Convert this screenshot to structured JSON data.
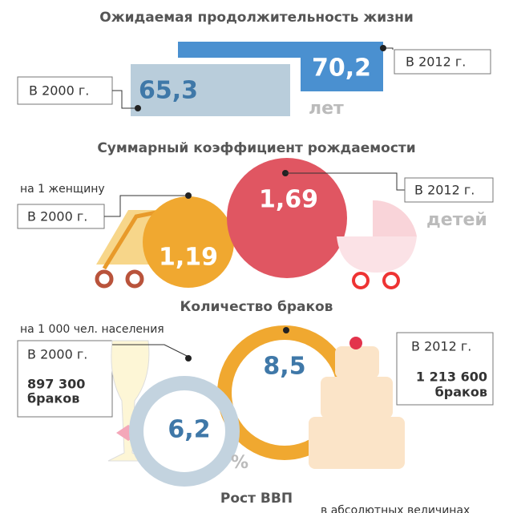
{
  "life_expectancy": {
    "title": "Ожидаемая продолжительность жизни",
    "year_2012": "В 2012 г.",
    "value_2012": "70,2",
    "year_2000": "В 2000 г.",
    "value_2000": "65,3",
    "unit": "лет"
  },
  "fertility": {
    "title": "Суммарный коэффициент рождаемости",
    "note": "на 1 женщину",
    "year_2000": "В 2000 г.",
    "value_2000": "1,19",
    "year_2012": "В 2012 г.",
    "value_2012": "1,69",
    "unit": "детей"
  },
  "marriages": {
    "title": "Количество браков",
    "note": "на 1 000 чел. населения",
    "year_2000": "В 2000 г.",
    "count_2000": "897 300",
    "count_2000_unit": "браков",
    "value_2000": "6,2",
    "year_2012": "В 2012 г.",
    "count_2012": "1 213 600",
    "count_2012_unit": "браков",
    "value_2012": "8,5",
    "unit": "%"
  },
  "gdp": {
    "title": "Рост ВВП",
    "note": "в абсолютных величинах"
  }
}
